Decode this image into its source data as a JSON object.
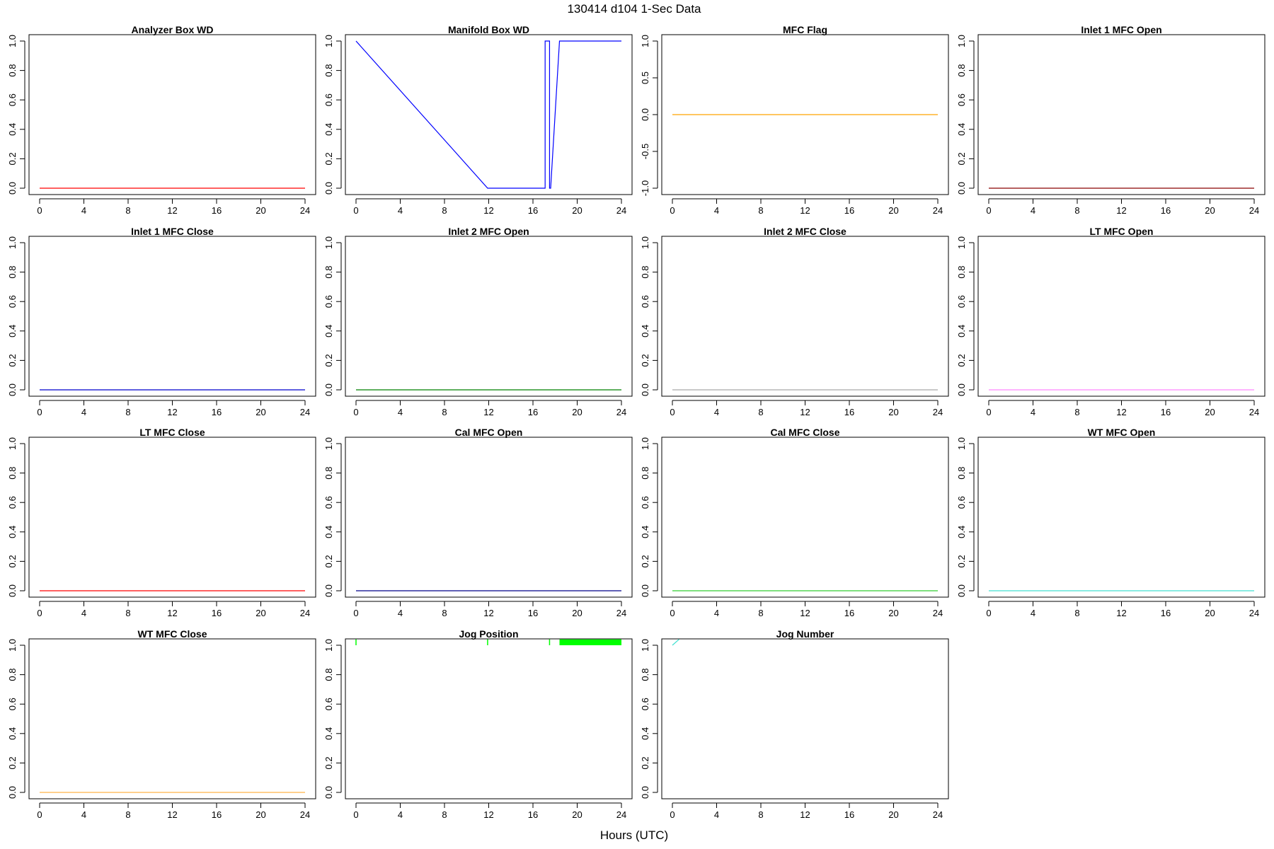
{
  "figure": {
    "title": "130414   d104   1-Sec Data",
    "xlabel": "Hours (UTC)"
  },
  "chart_data": [
    {
      "type": "line",
      "title": "Analyzer Box WD",
      "color": "#ff0000",
      "xlim": [
        0,
        24
      ],
      "ylim": [
        0,
        1
      ],
      "xticks": [
        0,
        4,
        8,
        12,
        16,
        20,
        24
      ],
      "yticks": [
        "0.0",
        "0.2",
        "0.4",
        "0.6",
        "0.8",
        "1.0"
      ],
      "x": [
        0,
        24
      ],
      "y": [
        0,
        0
      ]
    },
    {
      "type": "line",
      "title": "Manifold Box WD",
      "color": "#0000ff",
      "xlim": [
        0,
        24
      ],
      "ylim": [
        0,
        1
      ],
      "xticks": [
        0,
        4,
        8,
        12,
        16,
        20,
        24
      ],
      "yticks": [
        "0.0",
        "0.2",
        "0.4",
        "0.6",
        "0.8",
        "1.0"
      ],
      "x": [
        0,
        11.9,
        17.1,
        17.1,
        17.5,
        17.5,
        17.6,
        18.4,
        24
      ],
      "y": [
        1,
        0,
        0,
        1,
        1,
        0,
        0,
        1,
        1
      ]
    },
    {
      "type": "line",
      "title": "MFC Flag",
      "color": "#ffa500",
      "xlim": [
        0,
        24
      ],
      "ylim": [
        -1,
        1
      ],
      "xticks": [
        0,
        4,
        8,
        12,
        16,
        20,
        24
      ],
      "yticks": [
        "-1.0",
        "-0.5",
        "0.0",
        "0.5",
        "1.0"
      ],
      "x": [
        0,
        24
      ],
      "y": [
        0,
        0
      ]
    },
    {
      "type": "line",
      "title": "Inlet 1 MFC Open",
      "color": "#8b0000",
      "xlim": [
        0,
        24
      ],
      "ylim": [
        0,
        1
      ],
      "xticks": [
        0,
        4,
        8,
        12,
        16,
        20,
        24
      ],
      "yticks": [
        "0.0",
        "0.2",
        "0.4",
        "0.6",
        "0.8",
        "1.0"
      ],
      "x": [
        0,
        24
      ],
      "y": [
        0,
        0
      ]
    },
    {
      "type": "line",
      "title": "Inlet 1 MFC Close",
      "color": "#0000cd",
      "xlim": [
        0,
        24
      ],
      "ylim": [
        0,
        1
      ],
      "xticks": [
        0,
        4,
        8,
        12,
        16,
        20,
        24
      ],
      "yticks": [
        "0.0",
        "0.2",
        "0.4",
        "0.6",
        "0.8",
        "1.0"
      ],
      "x": [
        0,
        24
      ],
      "y": [
        0,
        0
      ]
    },
    {
      "type": "line",
      "title": "Inlet 2 MFC Open",
      "color": "#008000",
      "xlim": [
        0,
        24
      ],
      "ylim": [
        0,
        1
      ],
      "xticks": [
        0,
        4,
        8,
        12,
        16,
        20,
        24
      ],
      "yticks": [
        "0.0",
        "0.2",
        "0.4",
        "0.6",
        "0.8",
        "1.0"
      ],
      "x": [
        0,
        24
      ],
      "y": [
        0,
        0
      ]
    },
    {
      "type": "line",
      "title": "Inlet 2 MFC Close",
      "color": "#a9a9a9",
      "xlim": [
        0,
        24
      ],
      "ylim": [
        0,
        1
      ],
      "xticks": [
        0,
        4,
        8,
        12,
        16,
        20,
        24
      ],
      "yticks": [
        "0.0",
        "0.2",
        "0.4",
        "0.6",
        "0.8",
        "1.0"
      ],
      "x": [
        0,
        24
      ],
      "y": [
        0,
        0
      ]
    },
    {
      "type": "line",
      "title": "LT MFC Open",
      "color": "#ff88ff",
      "xlim": [
        0,
        24
      ],
      "ylim": [
        0,
        1
      ],
      "xticks": [
        0,
        4,
        8,
        12,
        16,
        20,
        24
      ],
      "yticks": [
        "0.0",
        "0.2",
        "0.4",
        "0.6",
        "0.8",
        "1.0"
      ],
      "x": [
        0,
        24
      ],
      "y": [
        0,
        0
      ]
    },
    {
      "type": "line",
      "title": "LT MFC Close",
      "color": "#ff0000",
      "xlim": [
        0,
        24
      ],
      "ylim": [
        0,
        1
      ],
      "xticks": [
        0,
        4,
        8,
        12,
        16,
        20,
        24
      ],
      "yticks": [
        "0.0",
        "0.2",
        "0.4",
        "0.6",
        "0.8",
        "1.0"
      ],
      "x": [
        0,
        24
      ],
      "y": [
        0,
        0
      ]
    },
    {
      "type": "line",
      "title": "Cal MFC Open",
      "color": "#00008b",
      "xlim": [
        0,
        24
      ],
      "ylim": [
        0,
        1
      ],
      "xticks": [
        0,
        4,
        8,
        12,
        16,
        20,
        24
      ],
      "yticks": [
        "0.0",
        "0.2",
        "0.4",
        "0.6",
        "0.8",
        "1.0"
      ],
      "x": [
        0,
        24
      ],
      "y": [
        0,
        0
      ]
    },
    {
      "type": "line",
      "title": "Cal MFC Close",
      "color": "#32cd32",
      "xlim": [
        0,
        24
      ],
      "ylim": [
        0,
        1
      ],
      "xticks": [
        0,
        4,
        8,
        12,
        16,
        20,
        24
      ],
      "yticks": [
        "0.0",
        "0.2",
        "0.4",
        "0.6",
        "0.8",
        "1.0"
      ],
      "x": [
        0,
        24
      ],
      "y": [
        0,
        0
      ]
    },
    {
      "type": "line",
      "title": "WT MFC Open",
      "color": "#40e0d0",
      "xlim": [
        0,
        24
      ],
      "ylim": [
        0,
        1
      ],
      "xticks": [
        0,
        4,
        8,
        12,
        16,
        20,
        24
      ],
      "yticks": [
        "0.0",
        "0.2",
        "0.4",
        "0.6",
        "0.8",
        "1.0"
      ],
      "x": [
        0,
        24
      ],
      "y": [
        0,
        0
      ]
    },
    {
      "type": "line",
      "title": "WT MFC Close",
      "color": "#ffb347",
      "xlim": [
        0,
        24
      ],
      "ylim": [
        0,
        1
      ],
      "xticks": [
        0,
        4,
        8,
        12,
        16,
        20,
        24
      ],
      "yticks": [
        "0.0",
        "0.2",
        "0.4",
        "0.6",
        "0.8",
        "1.0"
      ],
      "x": [
        0,
        24
      ],
      "y": [
        0,
        0
      ]
    },
    {
      "type": "line",
      "title": "Jog Position",
      "color": "#00ff00",
      "xlim": [
        0,
        24
      ],
      "ylim": [
        0,
        1
      ],
      "xticks": [
        0,
        4,
        8,
        12,
        16,
        20,
        24
      ],
      "yticks": [
        "0.0",
        "0.2",
        "0.4",
        "0.6",
        "0.8",
        "1.0"
      ],
      "segments": [
        {
          "x": [
            0,
            0
          ],
          "y": [
            1.0,
            1.04
          ]
        },
        {
          "x": [
            11.9,
            11.9
          ],
          "y": [
            1.0,
            1.04
          ]
        },
        {
          "x": [
            17.5,
            17.5
          ],
          "y": [
            1.0,
            1.04
          ]
        }
      ],
      "bands": [
        {
          "x": [
            18.4,
            24
          ],
          "y": [
            1.0,
            1.04
          ]
        }
      ]
    },
    {
      "type": "line",
      "title": "Jog Number",
      "color": "#40e0d0",
      "xlim": [
        0,
        24
      ],
      "ylim": [
        0,
        1
      ],
      "xticks": [
        0,
        4,
        8,
        12,
        16,
        20,
        24
      ],
      "yticks": [
        "0.0",
        "0.2",
        "0.4",
        "0.6",
        "0.8",
        "1.0"
      ],
      "x": [
        0,
        0.6
      ],
      "y": [
        1.0,
        1.04
      ]
    }
  ]
}
